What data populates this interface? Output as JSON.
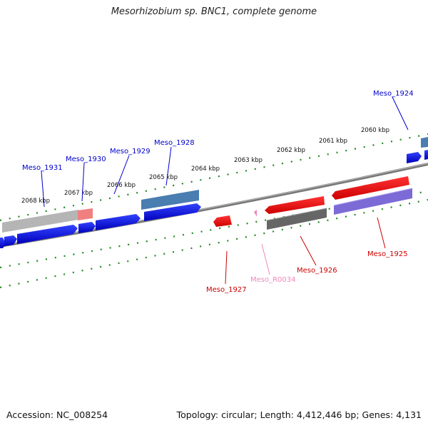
{
  "title": "Mesorhizobium sp. BNC1, complete genome",
  "footer": {
    "accession": "Accession: NC_008254",
    "stats": "Topology: circular; Length: 4,412,446 bp; Genes: 4,131"
  },
  "scale_labels": [
    "2068 kbp",
    "2067 kbp",
    "2066 kbp",
    "2065 kbp",
    "2064 kbp",
    "2063 kbp",
    "2062 kbp",
    "2061 kbp",
    "2060 kbp"
  ],
  "gene_labels": {
    "meso_1931": "Meso_1931",
    "meso_1930": "Meso_1930",
    "meso_1929": "Meso_1929",
    "meso_1928": "Meso_1928",
    "meso_1924": "Meso_1924",
    "meso_1927": "Meso_1927",
    "meso_r0034": "Meso_R0034",
    "meso_1926": "Meso_1926",
    "meso_1925": "Meso_1925"
  },
  "colors": {
    "forward_cds": "#0000ee",
    "reverse_cds": "#ee0000",
    "rna": "#ee88bb",
    "scale_ticks": "#228822",
    "backbone": "#777777"
  }
}
